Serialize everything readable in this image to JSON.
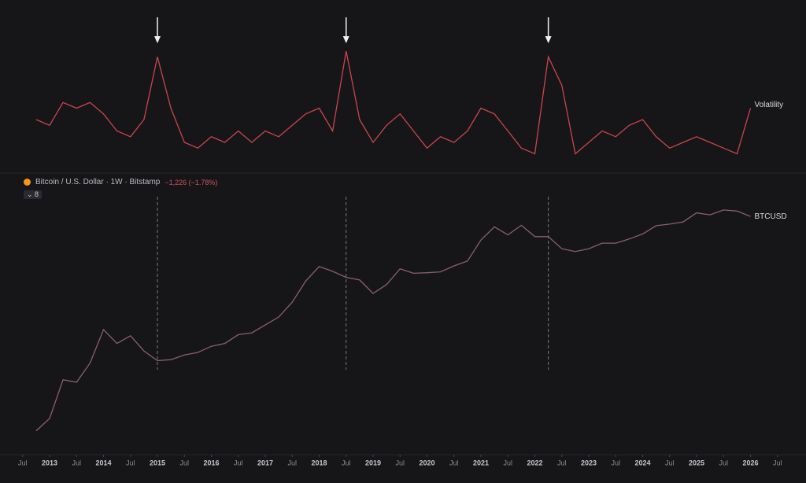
{
  "chart_data": {
    "type": "line",
    "symbol": "Bitcoin / U.S. Dollar · 1W · Bitstamp",
    "change": "−1,226 (−1.78%)",
    "indicator_count": "8",
    "x": [
      "2012-10",
      "2013-01",
      "2013-04",
      "2013-07",
      "2013-10",
      "2014-01",
      "2014-04",
      "2014-07",
      "2014-10",
      "2015-01",
      "2015-04",
      "2015-07",
      "2015-10",
      "2016-01",
      "2016-04",
      "2016-07",
      "2016-10",
      "2017-01",
      "2017-04",
      "2017-07",
      "2017-10",
      "2018-01",
      "2018-04",
      "2018-07",
      "2018-10",
      "2019-01",
      "2019-04",
      "2019-07",
      "2019-10",
      "2020-01",
      "2020-04",
      "2020-07",
      "2020-10",
      "2021-01",
      "2021-04",
      "2021-07",
      "2021-10",
      "2022-01",
      "2022-04",
      "2022-07",
      "2022-10",
      "2023-01",
      "2023-04",
      "2023-07",
      "2023-10",
      "2024-01",
      "2024-04",
      "2024-07",
      "2024-10",
      "2025-01",
      "2025-04",
      "2025-07",
      "2025-10",
      "2026-01"
    ],
    "series": [
      {
        "name": "Volatility",
        "color": "#c9444f",
        "panel": "top",
        "values": [
          40,
          35,
          55,
          50,
          55,
          45,
          30,
          25,
          40,
          95,
          50,
          20,
          15,
          25,
          20,
          30,
          20,
          30,
          25,
          35,
          45,
          50,
          30,
          100,
          40,
          20,
          35,
          45,
          30,
          15,
          25,
          20,
          30,
          50,
          45,
          30,
          15,
          10,
          95,
          70,
          10,
          20,
          30,
          25,
          35,
          40,
          25,
          15,
          20,
          25,
          20,
          15,
          10,
          50
        ]
      },
      {
        "name": "BTCUSD",
        "color": "#8a5f6a",
        "panel": "bottom",
        "values": [
          12,
          20,
          100,
          90,
          200,
          800,
          450,
          620,
          330,
          220,
          230,
          280,
          310,
          400,
          450,
          650,
          700,
          970,
          1350,
          2500,
          6000,
          11000,
          9000,
          7000,
          6300,
          3600,
          5200,
          10000,
          8300,
          8500,
          8800,
          11300,
          13800,
          33000,
          57000,
          41000,
          61000,
          38000,
          38000,
          23000,
          20500,
          23000,
          29000,
          29000,
          34500,
          42500,
          60000,
          64000,
          70000,
          102000,
          94000,
          115000,
          110000,
          88000
        ]
      }
    ],
    "ylim": [
      0,
      100
    ],
    "y2lim": [
      8,
      200000
    ],
    "y2log": true,
    "markers": [
      "2015-01",
      "2018-07",
      "2022-04"
    ],
    "xticks": [
      {
        "value": "2012-07",
        "label": "Jul"
      },
      {
        "value": "2013-01",
        "label": "2013"
      },
      {
        "value": "2013-07",
        "label": "Jul"
      },
      {
        "value": "2014-01",
        "label": "2014"
      },
      {
        "value": "2014-07",
        "label": "Jul"
      },
      {
        "value": "2015-01",
        "label": "2015"
      },
      {
        "value": "2015-07",
        "label": "Jul"
      },
      {
        "value": "2016-01",
        "label": "2016"
      },
      {
        "value": "2016-07",
        "label": "Jul"
      },
      {
        "value": "2017-01",
        "label": "2017"
      },
      {
        "value": "2017-07",
        "label": "Jul"
      },
      {
        "value": "2018-01",
        "label": "2018"
      },
      {
        "value": "2018-07",
        "label": "Jul"
      },
      {
        "value": "2019-01",
        "label": "2019"
      },
      {
        "value": "2019-07",
        "label": "Jul"
      },
      {
        "value": "2020-01",
        "label": "2020"
      },
      {
        "value": "2020-07",
        "label": "Jul"
      },
      {
        "value": "2021-01",
        "label": "2021"
      },
      {
        "value": "2021-07",
        "label": "Jul"
      },
      {
        "value": "2022-01",
        "label": "2022"
      },
      {
        "value": "2022-07",
        "label": "Jul"
      },
      {
        "value": "2023-01",
        "label": "2023"
      },
      {
        "value": "2023-07",
        "label": "Jul"
      },
      {
        "value": "2024-01",
        "label": "2024"
      },
      {
        "value": "2024-07",
        "label": "Jul"
      },
      {
        "value": "2025-01",
        "label": "2025"
      },
      {
        "value": "2025-07",
        "label": "Jul"
      },
      {
        "value": "2026-01",
        "label": "2026"
      },
      {
        "value": "2026-07",
        "label": "Jul"
      }
    ]
  }
}
